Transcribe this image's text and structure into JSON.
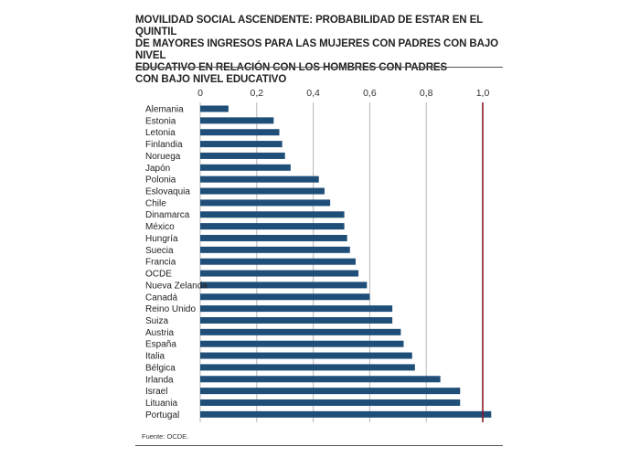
{
  "title": "MOVILIDAD SOCIAL ASCENDENTE: PROBABILIDAD DE ESTAR EN EL QUINTIL\nDE MAYORES INGRESOS PARA LAS MUJERES CON PADRES CON BAJO NIVEL\nEDUCATIVO EN RELACIÓN CON LOS HOMBRES CON PADRES\nCON BAJO NIVEL EDUCATIVO",
  "source": "Fuente: OCDE.",
  "colors": {
    "bar": "#1f4e79",
    "grid": "#b8b8b8",
    "reference_line": "#8b1a2b"
  },
  "chart_data": {
    "type": "bar",
    "orientation": "horizontal",
    "categories": [
      "Alemania",
      "Estonia",
      "Letonia",
      "Finlandia",
      "Noruega",
      "Japón",
      "Polonia",
      "Eslovaquia",
      "Chile",
      "Dinamarca",
      "México",
      "Hungría",
      "Suecia",
      "Francia",
      "OCDE",
      "Nueva Zelanda",
      "Canadá",
      "Reino Unido",
      "Suiza",
      "Austria",
      "España",
      "Italia",
      "Bélgica",
      "Irlanda",
      "Israel",
      "Lituania",
      "Portugal"
    ],
    "values": [
      0.1,
      0.26,
      0.28,
      0.29,
      0.3,
      0.32,
      0.42,
      0.44,
      0.46,
      0.51,
      0.51,
      0.52,
      0.53,
      0.55,
      0.56,
      0.59,
      0.6,
      0.68,
      0.68,
      0.71,
      0.72,
      0.75,
      0.76,
      0.85,
      0.92,
      0.92,
      1.03
    ],
    "xticks": [
      "0",
      "0,2",
      "0,4",
      "0,6",
      "0,8",
      "1,0"
    ],
    "xtick_values": [
      0,
      0.2,
      0.4,
      0.6,
      0.8,
      1.0
    ],
    "xlim": [
      0,
      1.03
    ],
    "reference_line": 1.0,
    "grid": true,
    "xaxis_position": "top"
  }
}
